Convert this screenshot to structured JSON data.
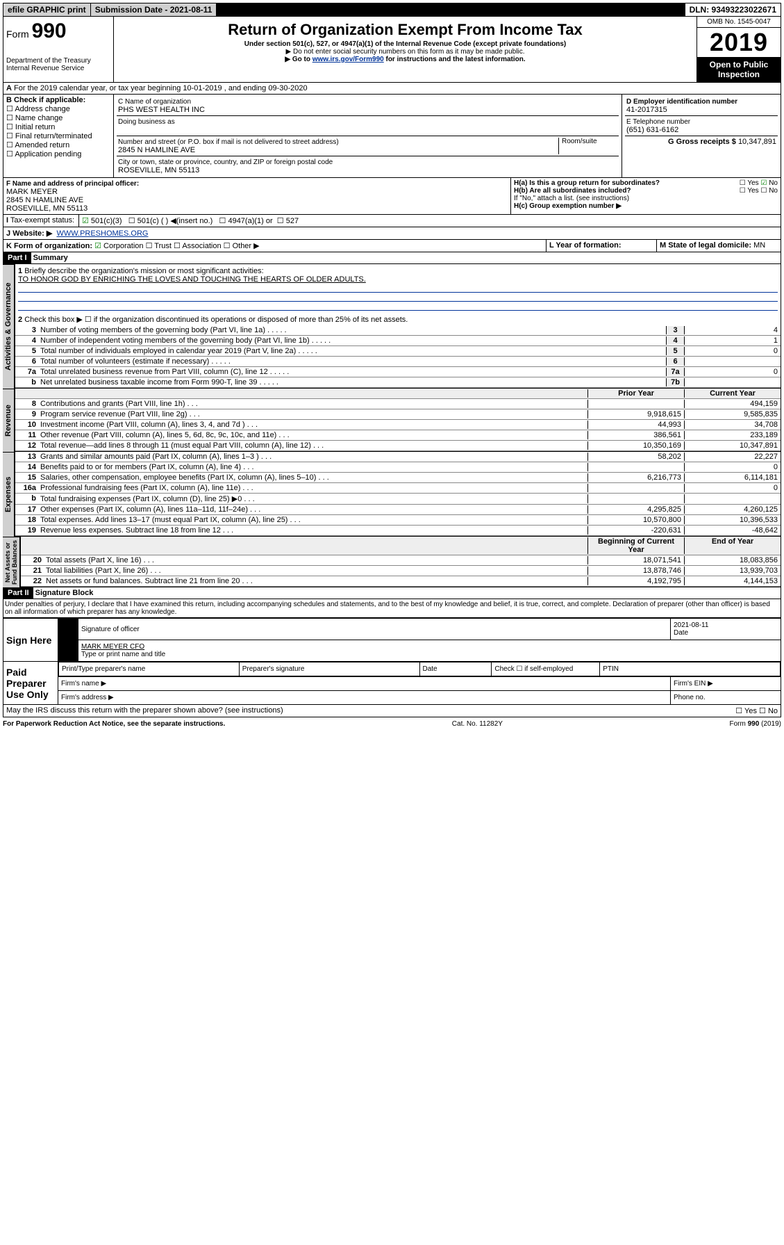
{
  "topbar": {
    "efile": "efile GRAPHIC print",
    "sub_label": "Submission Date - 2021-08-11",
    "dln": "DLN: 93493223022671"
  },
  "header": {
    "form_label": "Form",
    "form_no": "990",
    "dept": "Department of the Treasury\nInternal Revenue Service",
    "title": "Return of Organization Exempt From Income Tax",
    "sub1": "Under section 501(c), 527, or 4947(a)(1) of the Internal Revenue Code (except private foundations)",
    "sub2": "▶ Do not enter social security numbers on this form as it may be made public.",
    "sub3": "▶ Go to www.irs.gov/Form990 for instructions and the latest information.",
    "omb": "OMB No. 1545-0047",
    "year": "2019",
    "open": "Open to Public\nInspection"
  },
  "lineA": "For the 2019 calendar year, or tax year beginning 10-01-2019 , and ending 09-30-2020",
  "boxB": {
    "label": "B Check if applicable:",
    "opts": [
      "Address change",
      "Name change",
      "Initial return",
      "Final return/terminated",
      "Amended return",
      "Application pending"
    ]
  },
  "boxC": {
    "label": "C Name of organization",
    "name": "PHS WEST HEALTH INC",
    "dba": "Doing business as",
    "street_label": "Number and street (or P.O. box if mail is not delivered to street address)",
    "street": "2845 N HAMLINE AVE",
    "room": "Room/suite",
    "city_label": "City or town, state or province, country, and ZIP or foreign postal code",
    "city": "ROSEVILLE, MN  55113"
  },
  "boxD": {
    "label": "D Employer identification number",
    "val": "41-2017315"
  },
  "boxE": {
    "label": "E Telephone number",
    "val": "(651) 631-6162"
  },
  "boxG": {
    "label": "G Gross receipts $",
    "val": "10,347,891"
  },
  "boxF": {
    "label": "F Name and address of principal officer:",
    "name": "MARK MEYER",
    "addr1": "2845 N HAMLINE AVE",
    "addr2": "ROSEVILLE, MN  55113"
  },
  "boxH": {
    "a": "H(a) Is this a group return for subordinates?",
    "b": "H(b) Are all subordinates included?",
    "note": "If \"No,\" attach a list. (see instructions)",
    "c": "H(c) Group exemption number ▶",
    "yes": "Yes",
    "no": "No"
  },
  "taxI": {
    "label": "Tax-exempt status:",
    "o1": "501(c)(3)",
    "o2": "501(c) ( ) ◀(insert no.)",
    "o3": "4947(a)(1) or",
    "o4": "527"
  },
  "siteJ": {
    "label": "Website: ▶",
    "val": "WWW.PRESHOMES.ORG"
  },
  "lineK": {
    "label": "K Form of organization:",
    "opts": [
      "Corporation",
      "Trust",
      "Association",
      "Other ▶"
    ]
  },
  "lineL": {
    "label": "L Year of formation:",
    "val": ""
  },
  "lineM": {
    "label": "M State of legal domicile:",
    "val": "MN"
  },
  "part1": {
    "title": "Part I",
    "sub": "Summary",
    "q1": "Briefly describe the organization's mission or most significant activities:",
    "a1": "TO HONOR GOD BY ENRICHING THE LOVES AND TOUCHING THE HEARTS OF OLDER ADULTS.",
    "q2": "Check this box ▶ ☐ if the organization discontinued its operations or disposed of more than 25% of its net assets.",
    "rows_gov": [
      {
        "n": "3",
        "t": "Number of voting members of the governing body (Part VI, line 1a)",
        "k": "3",
        "v": "4"
      },
      {
        "n": "4",
        "t": "Number of independent voting members of the governing body (Part VI, line 1b)",
        "k": "4",
        "v": "1"
      },
      {
        "n": "5",
        "t": "Total number of individuals employed in calendar year 2019 (Part V, line 2a)",
        "k": "5",
        "v": "0"
      },
      {
        "n": "6",
        "t": "Total number of volunteers (estimate if necessary)",
        "k": "6",
        "v": ""
      },
      {
        "n": "7a",
        "t": "Total unrelated business revenue from Part VIII, column (C), line 12",
        "k": "7a",
        "v": "0"
      },
      {
        "n": "b",
        "t": "Net unrelated business taxable income from Form 990-T, line 39",
        "k": "7b",
        "v": ""
      }
    ],
    "col_py": "Prior Year",
    "col_cy": "Current Year",
    "rows_rev": [
      {
        "n": "8",
        "t": "Contributions and grants (Part VIII, line 1h)",
        "py": "",
        "cy": "494,159"
      },
      {
        "n": "9",
        "t": "Program service revenue (Part VIII, line 2g)",
        "py": "9,918,615",
        "cy": "9,585,835"
      },
      {
        "n": "10",
        "t": "Investment income (Part VIII, column (A), lines 3, 4, and 7d )",
        "py": "44,993",
        "cy": "34,708"
      },
      {
        "n": "11",
        "t": "Other revenue (Part VIII, column (A), lines 5, 6d, 8c, 9c, 10c, and 11e)",
        "py": "386,561",
        "cy": "233,189"
      },
      {
        "n": "12",
        "t": "Total revenue—add lines 8 through 11 (must equal Part VIII, column (A), line 12)",
        "py": "10,350,169",
        "cy": "10,347,891"
      }
    ],
    "rows_exp": [
      {
        "n": "13",
        "t": "Grants and similar amounts paid (Part IX, column (A), lines 1–3 )",
        "py": "58,202",
        "cy": "22,227"
      },
      {
        "n": "14",
        "t": "Benefits paid to or for members (Part IX, column (A), line 4)",
        "py": "",
        "cy": "0"
      },
      {
        "n": "15",
        "t": "Salaries, other compensation, employee benefits (Part IX, column (A), lines 5–10)",
        "py": "6,216,773",
        "cy": "6,114,181"
      },
      {
        "n": "16a",
        "t": "Professional fundraising fees (Part IX, column (A), line 11e)",
        "py": "",
        "cy": "0"
      },
      {
        "n": "b",
        "t": "Total fundraising expenses (Part IX, column (D), line 25) ▶0",
        "py": "",
        "cy": ""
      },
      {
        "n": "17",
        "t": "Other expenses (Part IX, column (A), lines 11a–11d, 11f–24e)",
        "py": "4,295,825",
        "cy": "4,260,125"
      },
      {
        "n": "18",
        "t": "Total expenses. Add lines 13–17 (must equal Part IX, column (A), line 25)",
        "py": "10,570,800",
        "cy": "10,396,533"
      },
      {
        "n": "19",
        "t": "Revenue less expenses. Subtract line 18 from line 12",
        "py": "-220,631",
        "cy": "-48,642"
      }
    ],
    "col_boy": "Beginning of Current Year",
    "col_eoy": "End of Year",
    "rows_net": [
      {
        "n": "20",
        "t": "Total assets (Part X, line 16)",
        "py": "18,071,541",
        "cy": "18,083,856"
      },
      {
        "n": "21",
        "t": "Total liabilities (Part X, line 26)",
        "py": "13,878,746",
        "cy": "13,939,703"
      },
      {
        "n": "22",
        "t": "Net assets or fund balances. Subtract line 21 from line 20",
        "py": "4,192,795",
        "cy": "4,144,153"
      }
    ],
    "tab_gov": "Activities & Governance",
    "tab_rev": "Revenue",
    "tab_exp": "Expenses",
    "tab_net": "Net Assets or\nFund Balances"
  },
  "part2": {
    "title": "Part II",
    "sub": "Signature Block",
    "decl": "Under penalties of perjury, I declare that I have examined this return, including accompanying schedules and statements, and to the best of my knowledge and belief, it is true, correct, and complete. Declaration of preparer (other than officer) is based on all information of which preparer has any knowledge.",
    "sign_here": "Sign Here",
    "sig_off": "Signature of officer",
    "date_lbl": "Date",
    "date": "2021-08-11",
    "name": "MARK MEYER CFO",
    "name_lbl": "Type or print name and title",
    "paid": "Paid Preparer Use Only",
    "pt_name": "Print/Type preparer's name",
    "pt_sig": "Preparer's signature",
    "pt_date": "Date",
    "pt_chk": "Check ☐ if self-employed",
    "ptin": "PTIN",
    "firm_name": "Firm's name ▶",
    "firm_ein": "Firm's EIN ▶",
    "firm_addr": "Firm's address ▶",
    "phone": "Phone no.",
    "discuss": "May the IRS discuss this return with the preparer shown above? (see instructions)",
    "yes": "Yes",
    "no": "No"
  },
  "footer": {
    "l": "For Paperwork Reduction Act Notice, see the separate instructions.",
    "m": "Cat. No. 11282Y",
    "r": "Form 990 (2019)"
  }
}
